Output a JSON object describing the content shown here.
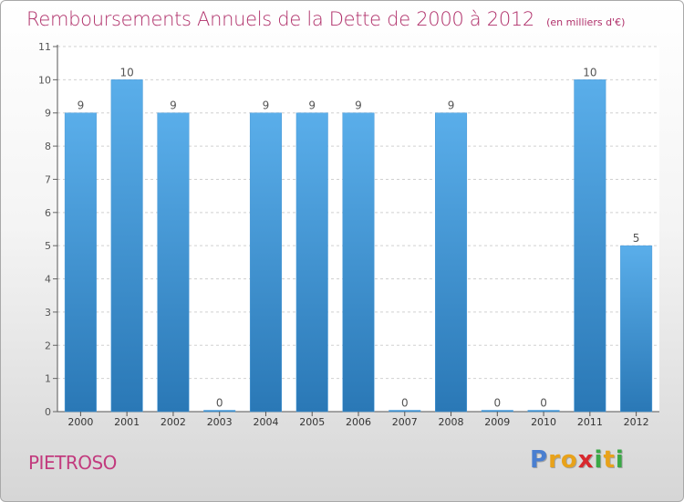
{
  "chart_data": {
    "type": "bar",
    "title": "Remboursements Annuels de la Dette de 2000 à 2012",
    "subtitle": "(en milliers d'€)",
    "categories": [
      "2000",
      "2001",
      "2002",
      "2003",
      "2004",
      "2005",
      "2006",
      "2007",
      "2008",
      "2009",
      "2010",
      "2011",
      "2012"
    ],
    "values": [
      9,
      10,
      9,
      0,
      9,
      9,
      9,
      0,
      9,
      0,
      0,
      10,
      5
    ],
    "data_labels": [
      "9",
      "10",
      "9",
      "0",
      "9",
      "9",
      "9",
      "0",
      "9",
      "0",
      "0",
      "10",
      "5"
    ],
    "ylim": [
      0,
      11
    ],
    "yticks": [
      "0",
      "1",
      "2",
      "3",
      "4",
      "5",
      "6",
      "7",
      "8",
      "9",
      "10",
      "11"
    ],
    "grid": true,
    "legend": "none",
    "bar_color_top": "#5aaeea",
    "bar_color_bottom": "#2a78b6",
    "title_color": "#b0306a"
  },
  "footer": {
    "commune": "PIETROSO",
    "brand": [
      "P",
      "r",
      "o",
      "x",
      "i",
      "t",
      "i"
    ],
    "brand_colors": [
      "#4a7fd0",
      "#e8a21a",
      "#e8a21a",
      "#d8282e",
      "#3aa846",
      "#e8a21a",
      "#3aa846"
    ]
  }
}
